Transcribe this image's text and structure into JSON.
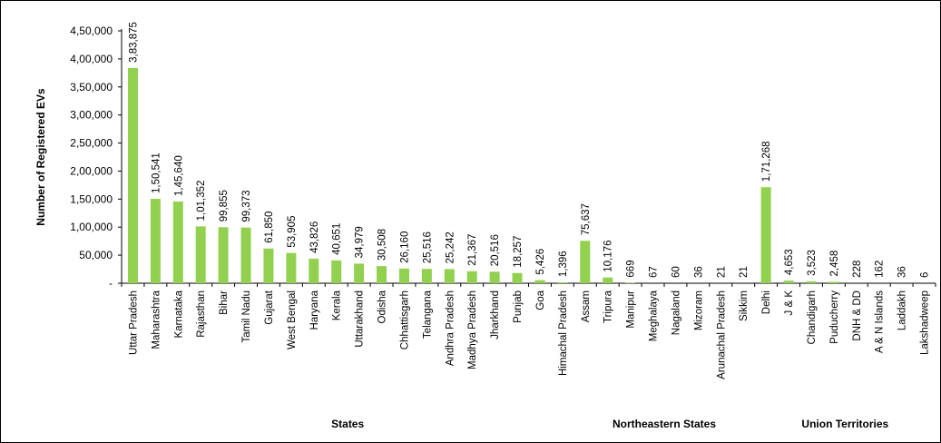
{
  "chart_data": {
    "type": "bar",
    "ylabel": "Number of Registered EVs",
    "ylim": [
      0,
      450000
    ],
    "y_ticks": [
      {
        "value": 0,
        "label": "-"
      },
      {
        "value": 50000,
        "label": "50,000"
      },
      {
        "value": 100000,
        "label": "1,00,000"
      },
      {
        "value": 150000,
        "label": "1,50,000"
      },
      {
        "value": 200000,
        "label": "2,00,000"
      },
      {
        "value": 250000,
        "label": "2,50,000"
      },
      {
        "value": 300000,
        "label": "3,00,000"
      },
      {
        "value": 350000,
        "label": "3,50,000"
      },
      {
        "value": 400000,
        "label": "4,00,000"
      },
      {
        "value": 450000,
        "label": "4,50,000"
      }
    ],
    "grid": false,
    "bar_color": "#92D050",
    "categories": [
      "Uttar Pradesh",
      "Maharashtra",
      "Karnataka",
      "Rajasthan",
      "Bihar",
      "Tamil Nadu",
      "Gujarat",
      "West Bengal",
      "Haryana",
      "Kerala",
      "Uttarakhand",
      "Odisha",
      "Chhattisgarh",
      "Telangana",
      "Andhra Pradesh",
      "Madhya Pradesh",
      "Jharkhand",
      "Punjab",
      "Goa",
      "Himachal Pradesh",
      "Assam",
      "Tripura",
      "Manipur",
      "Meghalaya",
      "Nagaland",
      "Mizoram",
      "Arunachal Pradesh",
      "Sikkim",
      "Delhi",
      "J & K",
      "Chandigarh",
      "Puducherry",
      "DNH & DD",
      "A & N Islands",
      "Laddakh",
      "Lakshadweep"
    ],
    "values": [
      383875,
      150541,
      145640,
      101352,
      99855,
      99373,
      61850,
      53905,
      43826,
      40651,
      34979,
      30508,
      26160,
      25516,
      25242,
      21367,
      20516,
      18257,
      5426,
      1396,
      75637,
      10176,
      669,
      67,
      60,
      36,
      21,
      21,
      171268,
      4653,
      3523,
      2458,
      228,
      162,
      36,
      6
    ],
    "value_labels": [
      "3,83,875",
      "1,50,541",
      "1,45,640",
      "1,01,352",
      "99,855",
      "99,373",
      "61,850",
      "53,905",
      "43,826",
      "40,651",
      "34,979",
      "30,508",
      "26,160",
      "25,516",
      "25,242",
      "21,367",
      "20,516",
      "18,257",
      "5,426",
      "1,396",
      "75,637",
      "10,176",
      "669",
      "67",
      "60",
      "36",
      "21",
      "21",
      "1,71,268",
      "4,653",
      "3,523",
      "2,458",
      "228",
      "162",
      "36",
      "6"
    ],
    "groups": [
      {
        "name": "States",
        "start": 0,
        "end": 19
      },
      {
        "name": "Northeastern States",
        "start": 20,
        "end": 27
      },
      {
        "name": "Union Territories",
        "start": 28,
        "end": 35
      }
    ]
  }
}
